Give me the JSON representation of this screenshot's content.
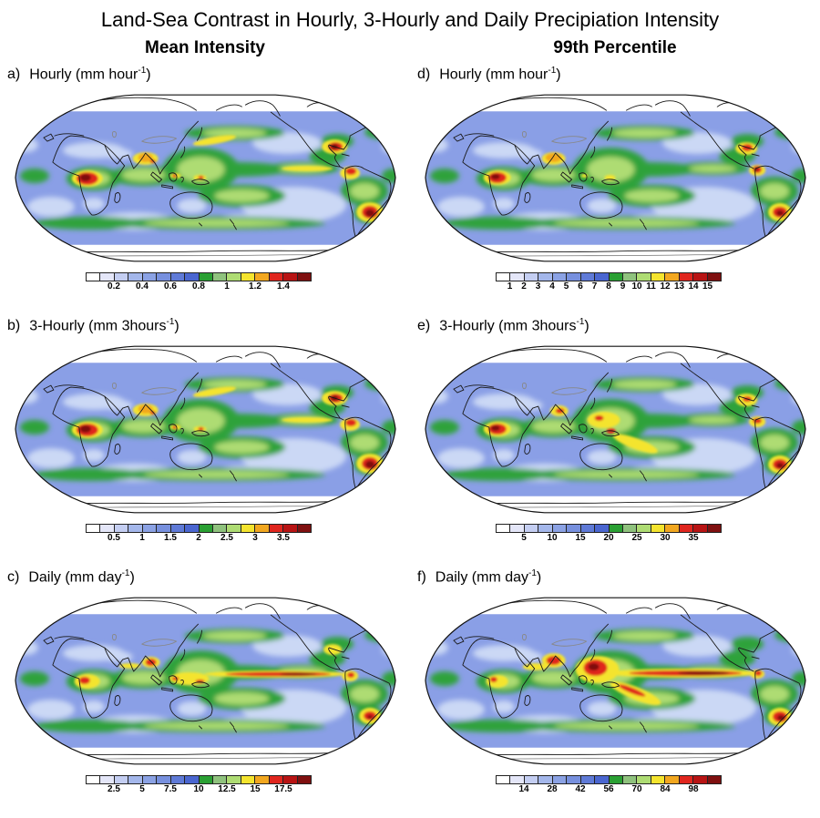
{
  "title": "Land-Sea Contrast in Hourly, 3-Hourly and Daily Precipiation Intensity",
  "columns": [
    {
      "label": "Mean Intensity"
    },
    {
      "label": "99th Percentile"
    }
  ],
  "palette": [
    "#FFFFFF",
    "#E4E6F8",
    "#C4CEF2",
    "#A4B7EB",
    "#8BA2E4",
    "#7790DE",
    "#5F7AD7",
    "#4A66D0",
    "#2AA033",
    "#8FC27D",
    "#AEDC73",
    "#F4E42E",
    "#F2A71F",
    "#E0261E",
    "#B81414",
    "#7F1010"
  ],
  "panels": [
    {
      "id": "a",
      "letter": "a)",
      "name": "Hourly",
      "unit": " (mm hour",
      "exp": "-1",
      "close": ")",
      "ticks": [
        "0.2",
        "0.4",
        "0.6",
        "0.8",
        "1",
        "1.2",
        "1.4"
      ],
      "tick_step": 2
    },
    {
      "id": "b",
      "letter": "b)",
      "name": "3-Hourly",
      "unit": " (mm 3hours",
      "exp": "-1",
      "close": ")",
      "ticks": [
        "0.5",
        "1",
        "1.5",
        "2",
        "2.5",
        "3",
        "3.5"
      ],
      "tick_step": 2
    },
    {
      "id": "c",
      "letter": "c)",
      "name": "Daily",
      "unit": " (mm day",
      "exp": "-1",
      "close": ")",
      "ticks": [
        "2.5",
        "5",
        "7.5",
        "10",
        "12.5",
        "15",
        "17.5"
      ],
      "tick_step": 2
    },
    {
      "id": "d",
      "letter": "d)",
      "name": "Hourly",
      "unit": " (mm hour",
      "exp": "-1",
      "close": ")",
      "ticks": [
        "1",
        "2",
        "3",
        "4",
        "5",
        "6",
        "7",
        "8",
        "9",
        "10",
        "11",
        "12",
        "13",
        "14",
        "15"
      ],
      "tick_step": 1
    },
    {
      "id": "e",
      "letter": "e)",
      "name": "3-Hourly",
      "unit": " (mm 3hours",
      "exp": "-1",
      "close": ")",
      "ticks": [
        "5",
        "10",
        "15",
        "20",
        "25",
        "30",
        "35"
      ],
      "tick_step": 2
    },
    {
      "id": "f",
      "letter": "f)",
      "name": "Daily",
      "unit": " (mm day",
      "exp": "-1",
      "close": ")",
      "ticks": [
        "14",
        "28",
        "42",
        "56",
        "70",
        "84",
        "98"
      ],
      "tick_step": 2
    }
  ],
  "chart_data": {
    "type": "heatmap",
    "figure": "Six global Robinson-projection maps of precipitation intensity (rows: accumulation period, columns: statistic), each with a discrete 16-class colorbar",
    "rows": [
      "Hourly",
      "3-Hourly",
      "Daily"
    ],
    "columns": [
      "Mean Intensity",
      "99th Percentile"
    ],
    "panels": [
      {
        "id": "a",
        "row": "Hourly",
        "column": "Mean Intensity",
        "units": "mm hour-1",
        "colorbar_ticks": [
          0.2,
          0.4,
          0.6,
          0.8,
          1,
          1.2,
          1.4
        ],
        "class_width": 0.1,
        "range": [
          0,
          1.6
        ]
      },
      {
        "id": "b",
        "row": "3-Hourly",
        "column": "Mean Intensity",
        "units": "mm 3hours-1",
        "colorbar_ticks": [
          0.5,
          1,
          1.5,
          2,
          2.5,
          3,
          3.5
        ],
        "class_width": 0.25,
        "range": [
          0,
          4
        ]
      },
      {
        "id": "c",
        "row": "Daily",
        "column": "Mean Intensity",
        "units": "mm day-1",
        "colorbar_ticks": [
          2.5,
          5,
          7.5,
          10,
          12.5,
          15,
          17.5
        ],
        "class_width": 1.25,
        "range": [
          0,
          20
        ]
      },
      {
        "id": "d",
        "row": "Hourly",
        "column": "99th Percentile",
        "units": "mm hour-1",
        "colorbar_ticks": [
          1,
          2,
          3,
          4,
          5,
          6,
          7,
          8,
          9,
          10,
          11,
          12,
          13,
          14,
          15
        ],
        "class_width": 1,
        "range": [
          0,
          16
        ]
      },
      {
        "id": "e",
        "row": "3-Hourly",
        "column": "99th Percentile",
        "units": "mm 3hours-1",
        "colorbar_ticks": [
          5,
          10,
          15,
          20,
          25,
          30,
          35
        ],
        "class_width": 2.5,
        "range": [
          0,
          40
        ]
      },
      {
        "id": "f",
        "row": "Daily",
        "column": "99th Percentile",
        "units": "mm day-1",
        "colorbar_ticks": [
          14,
          28,
          42,
          56,
          70,
          84,
          98
        ],
        "class_width": 7,
        "range": [
          0,
          112
        ]
      }
    ],
    "color_classes": 16,
    "legend_position": "horizontal colorbar below each panel",
    "notable_maxima_regions": [
      "central Africa",
      "India / Bay of Bengal",
      "Maritime Continent",
      "Gulf of Mexico / southeast US",
      "northwest South America",
      "southeast South America",
      "equatorial Pacific ITCZ (daily panels)"
    ]
  }
}
